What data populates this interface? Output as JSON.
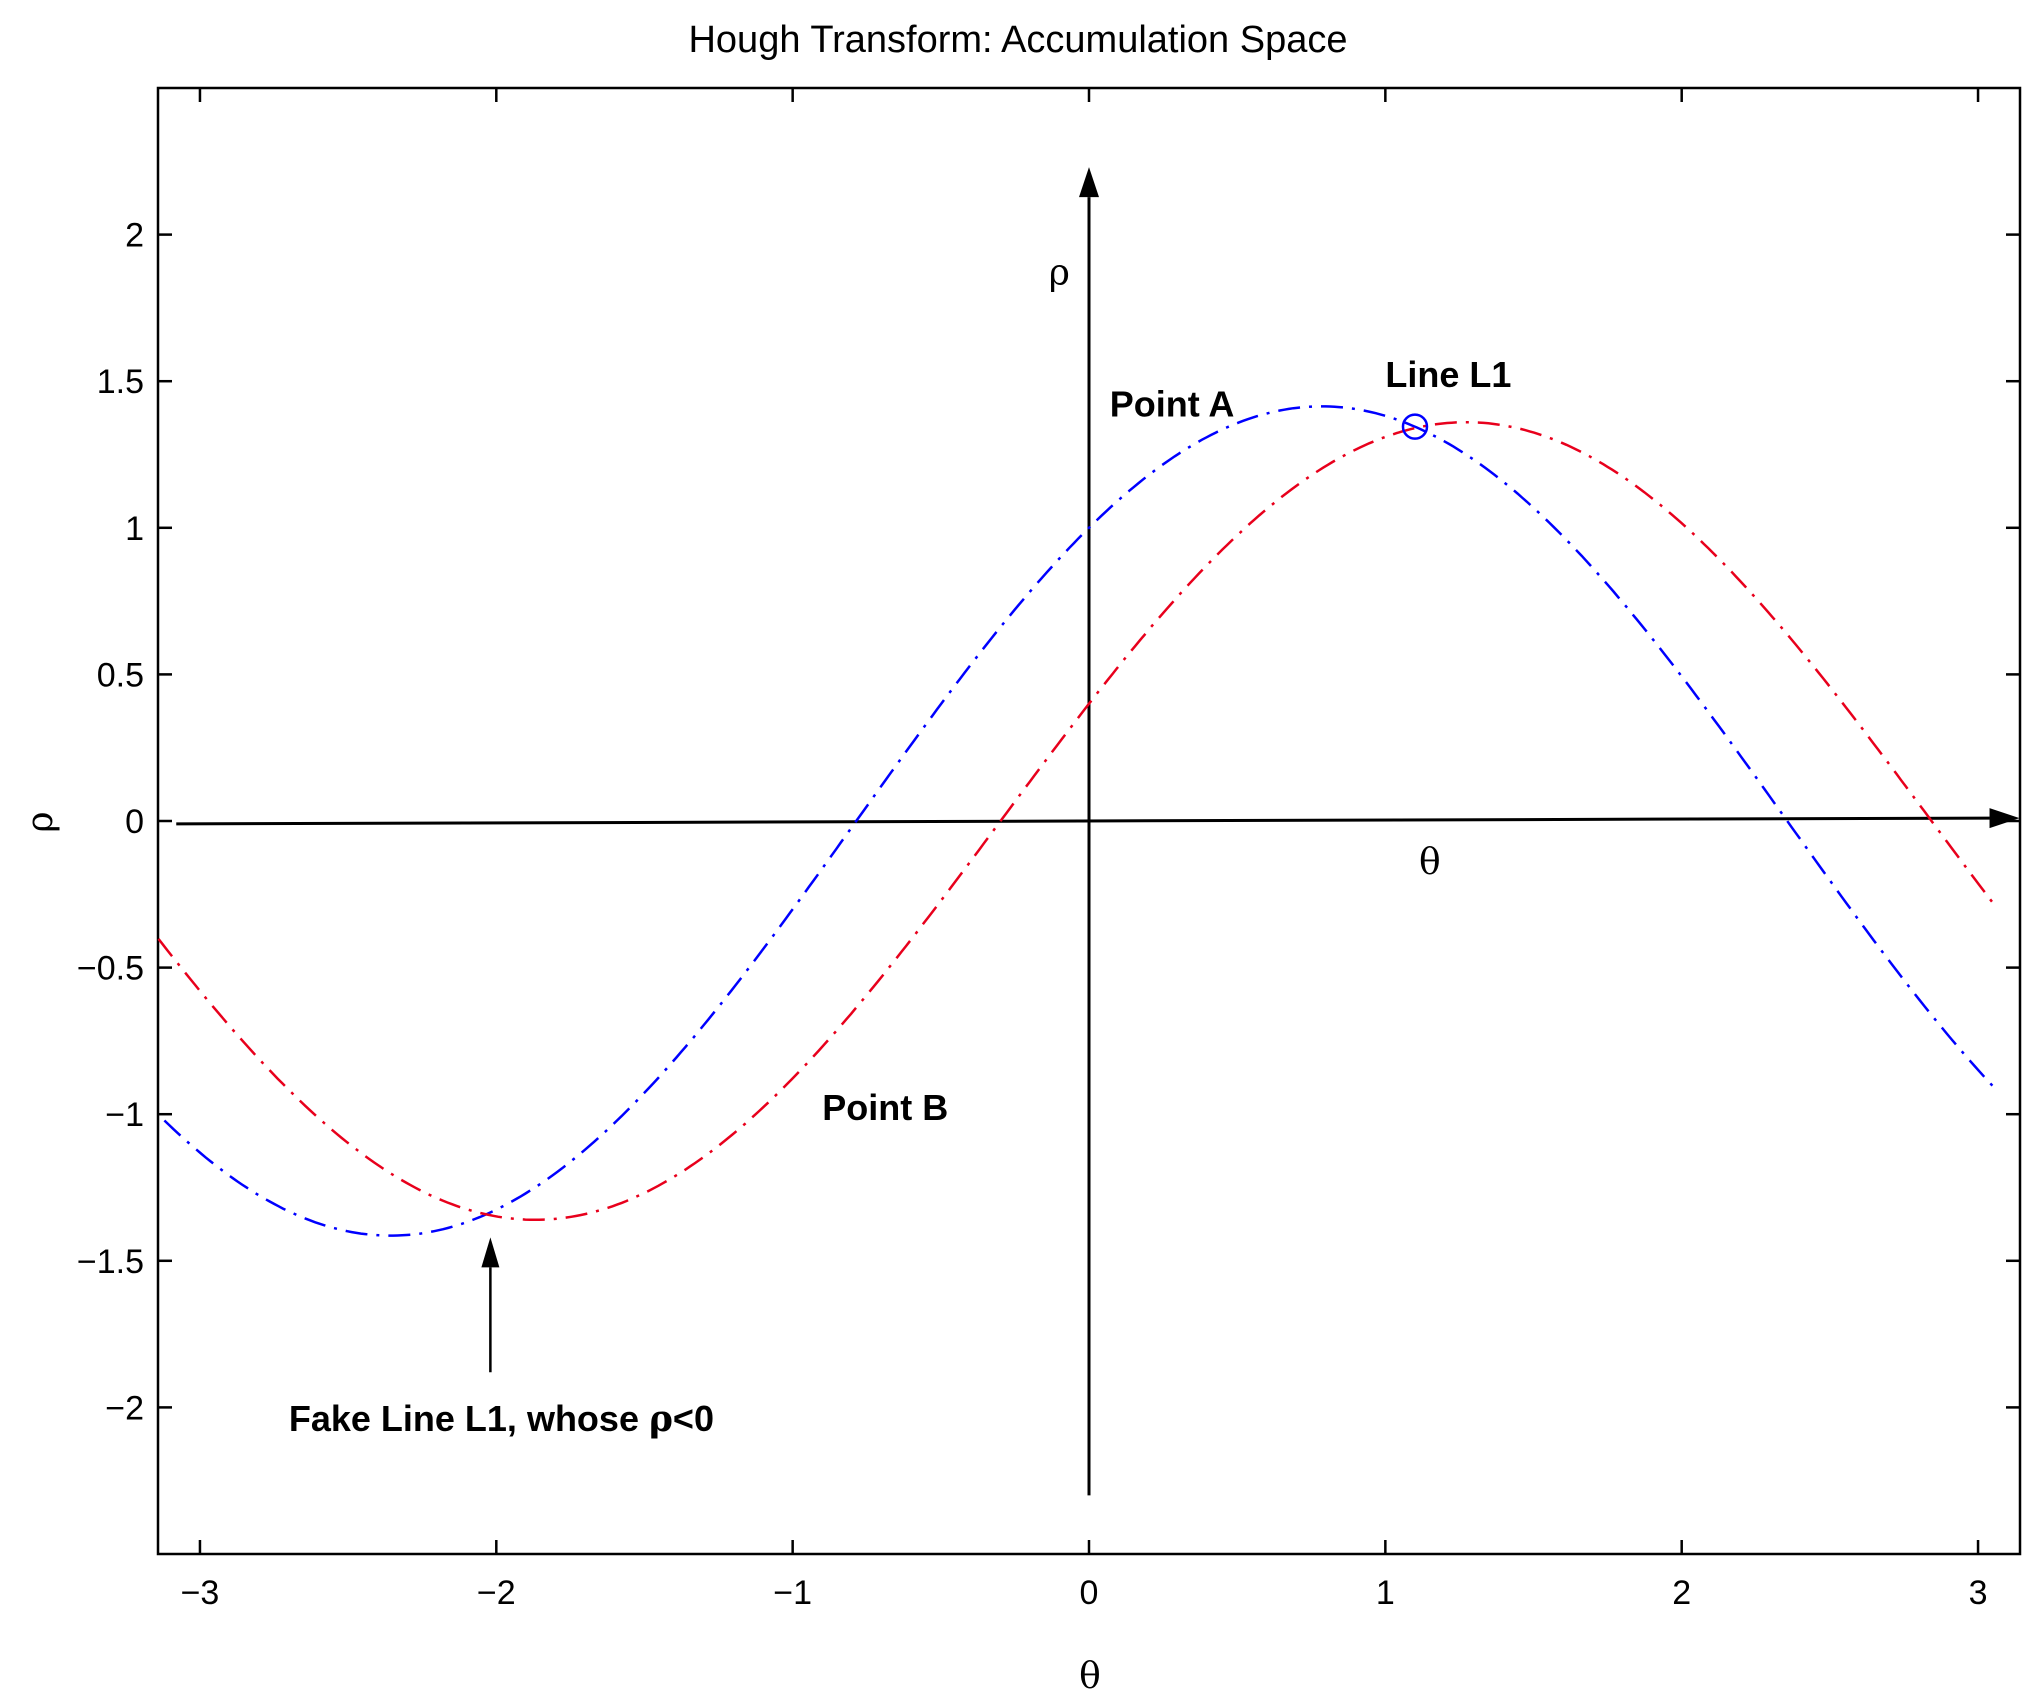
{
  "chart_data": {
    "type": "line",
    "title": "Hough Transform: Accumulation Space",
    "xlabel": "θ",
    "ylabel": "ρ",
    "xlim": [
      -3.14159,
      3.14159
    ],
    "ylim": [
      -2.5,
      2.5
    ],
    "xticks": [
      -3,
      -2,
      -1,
      0,
      1,
      2,
      3
    ],
    "xtick_labels": [
      "−3",
      "−2",
      "−1",
      "0",
      "1",
      "2",
      "3"
    ],
    "yticks": [
      -2,
      -1.5,
      -1,
      -0.5,
      0,
      0.5,
      1,
      1.5,
      2
    ],
    "ytick_labels": [
      "−2",
      "−1.5",
      "−1",
      "−0.5",
      "0",
      "0.5",
      "1",
      "1.5",
      "2"
    ],
    "grid": false,
    "series": [
      {
        "color": "#0000ff",
        "style": "dash-dot",
        "formula": "rho = cos(theta) + sin(theta)",
        "point": [
          1,
          1
        ],
        "x_range": [
          -3.12,
          3.05
        ]
      },
      {
        "color": "#e8001c",
        "style": "dash-dot",
        "formula": "rho = 0.4 cos(theta) + 1.3 sin(theta)",
        "point": [
          0.4,
          1.3
        ],
        "x_range": [
          -3.14,
          3.05
        ]
      }
    ],
    "marker": {
      "x": 1.1,
      "y": 1.345,
      "shape": "circle",
      "color": "#0000ff"
    },
    "inner_axes": {
      "horizontal": {
        "from": [
          -3.08,
          -0.01
        ],
        "to": [
          3.14,
          0.01
        ],
        "label": "θ",
        "label_at": [
          1.15,
          -0.18
        ]
      },
      "vertical": {
        "from": [
          0,
          -2.3
        ],
        "to": [
          0,
          2.23
        ],
        "label": "ρ",
        "label_at": [
          -0.1,
          1.83
        ]
      }
    },
    "annotations": [
      {
        "id": "point-a",
        "text": "Point A",
        "x": 0.07,
        "y": 1.38
      },
      {
        "id": "line-l1",
        "text": "Line L1",
        "x": 1.0,
        "y": 1.48
      },
      {
        "id": "point-b",
        "text": "Point B",
        "x": -0.9,
        "y": -1.02
      },
      {
        "id": "fake-line",
        "text_before": "Fake Line L1, whose ",
        "symbol": "ρ",
        "text_after": "<0",
        "x": -2.7,
        "y": -2.08
      }
    ],
    "arrow": {
      "from": [
        -2.02,
        -1.88
      ],
      "to": [
        -2.02,
        -1.42
      ]
    }
  }
}
